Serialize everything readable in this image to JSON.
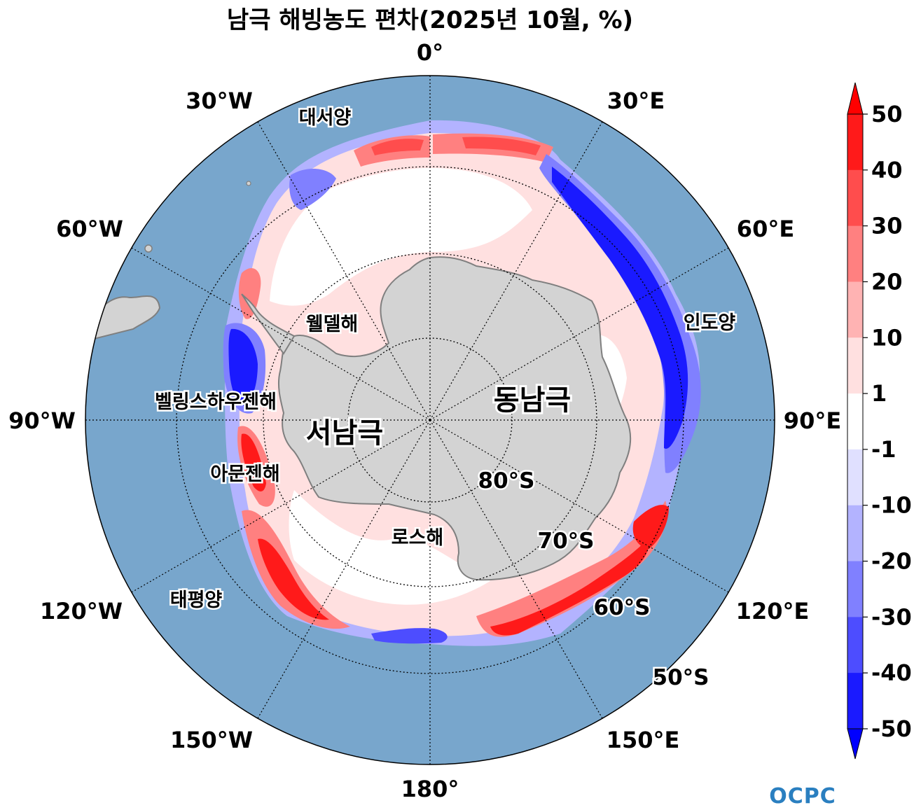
{
  "title": "남극 해빙농도 편차(2025년 10월, %)",
  "longitude_labels": {
    "lon_0": "0°",
    "lon_30e": "30°E",
    "lon_60e": "60°E",
    "lon_90e": "90°E",
    "lon_120e": "120°E",
    "lon_150e": "150°E",
    "lon_180": "180°",
    "lon_150w": "150°W",
    "lon_120w": "120°W",
    "lon_90w": "90°W",
    "lon_60w": "60°W",
    "lon_30w": "30°W"
  },
  "latitude_labels": {
    "lat_80s": "80°S",
    "lat_70s": "70°S",
    "lat_60s": "60°S",
    "lat_50s": "50°S"
  },
  "regions": {
    "atlantic": "대서양",
    "indian": "인도양",
    "pacific": "태평양",
    "weddell": "웰델해",
    "bellingshausen": "벨링스하우젠해",
    "amundsen": "아문젠해",
    "ross": "로스해",
    "east_antarctica": "동남극",
    "west_antarctica": "서남극"
  },
  "colorbar": {
    "ticks": [
      "50",
      "40",
      "30",
      "20",
      "10",
      "1",
      "-1",
      "-10",
      "-20",
      "-30",
      "-40",
      "-50"
    ],
    "colors_top_to_bottom": [
      "#ff1a1a",
      "#ff4d4d",
      "#ff8080",
      "#ffb3b3",
      "#ffe0e0",
      "#ffffff",
      "#e0e0ff",
      "#b3b3ff",
      "#8080ff",
      "#4d4dff",
      "#1a1aff"
    ],
    "extend_max_color": "#ff0000",
    "extend_min_color": "#0000ff"
  },
  "map_colors": {
    "ocean": "#78a6cc",
    "land": "#d3d3d3",
    "coast": "#7f7f7f"
  },
  "logo": "OCPC"
}
